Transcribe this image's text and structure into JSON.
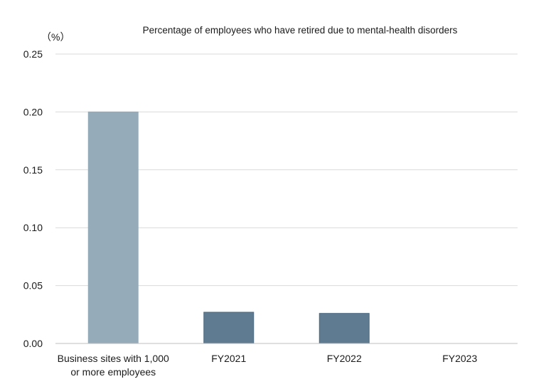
{
  "chart_data": {
    "type": "bar",
    "title": "Percentage of employees who have retired due to mental-health disorders",
    "unit_label": "（%）",
    "xlabel": "",
    "ylabel": "",
    "ylim": [
      0,
      0.25
    ],
    "yticks": [
      "0.00",
      "0.05",
      "0.10",
      "0.15",
      "0.20",
      "0.25"
    ],
    "grid": true,
    "categories": [
      [
        "Business sites with 1,000",
        "or more employees"
      ],
      [
        "FY2021"
      ],
      [
        "FY2022"
      ],
      [
        "FY2023"
      ]
    ],
    "values": [
      0.2,
      0.027,
      0.026,
      0
    ],
    "colors": [
      "#95abba",
      "#5f7b91",
      "#5f7b91",
      "#5f7b91"
    ]
  }
}
